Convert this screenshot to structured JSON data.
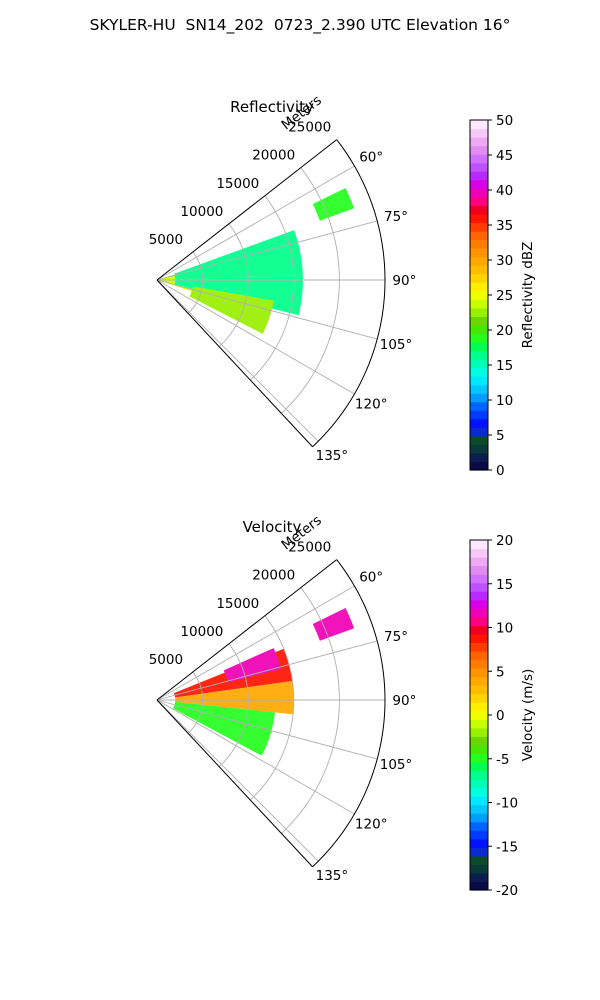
{
  "title": "SKYLER-HU  SN14_202  0723_2.390 UTC Elevation 16°",
  "chart_data": [
    {
      "type": "polar-sector",
      "title": "Reflectivity",
      "rlabel": "Meters",
      "r_ticks": [
        "5000",
        "10000",
        "15000",
        "20000",
        "25000"
      ],
      "r_range": [
        0,
        25000
      ],
      "theta_ticks": [
        "60°",
        "75°",
        "90°",
        "105°",
        "120°",
        "135°"
      ],
      "theta_range_deg": [
        52,
        137
      ],
      "grid": true,
      "colorbar": {
        "label": "Reflectivity dBZ",
        "min": 0,
        "max": 50,
        "ticks": [
          "0",
          "5",
          "10",
          "15",
          "20",
          "25",
          "30",
          "35",
          "40",
          "45",
          "50"
        ],
        "colors": [
          "#0a0a48",
          "#0b1c50",
          "#083a38",
          "#0c4a2e",
          "#0a2ad0",
          "#0012ff",
          "#003cff",
          "#0064ff",
          "#009cff",
          "#00c8ff",
          "#00e8ff",
          "#00ffe0",
          "#00ffb4",
          "#00ff8c",
          "#00ff50",
          "#24ff20",
          "#44e800",
          "#6ad800",
          "#98f000",
          "#c8ff00",
          "#f0ff00",
          "#ffee00",
          "#ffd400",
          "#ffbc00",
          "#ffa800",
          "#ff9400",
          "#ff7c00",
          "#ff6400",
          "#ff3c00",
          "#ff1400",
          "#f00020",
          "#ff0080",
          "#f000b4",
          "#d800e8",
          "#b828ff",
          "#c050ff",
          "#d070ff",
          "#e08cf0",
          "#eea8f4",
          "#f6c8f8",
          "#fde8fd"
        ]
      },
      "echo_regions": [
        {
          "r": [
            0,
            9000
          ],
          "theta": [
            72,
            108
          ],
          "value": 24
        },
        {
          "r": [
            2000,
            16000
          ],
          "theta": [
            70,
            88
          ],
          "value": 17
        },
        {
          "r": [
            2000,
            16000
          ],
          "theta": [
            88,
            104
          ],
          "value": 17
        },
        {
          "r": [
            4000,
            13000
          ],
          "theta": [
            100,
            117
          ],
          "value": 22
        },
        {
          "r": [
            19000,
            23000
          ],
          "theta": [
            64,
            70
          ],
          "value": 19
        }
      ]
    },
    {
      "type": "polar-sector",
      "title": "Velocity",
      "rlabel": "Meters",
      "r_ticks": [
        "5000",
        "10000",
        "15000",
        "20000",
        "25000"
      ],
      "r_range": [
        0,
        25000
      ],
      "theta_ticks": [
        "60°",
        "75°",
        "90°",
        "105°",
        "120°",
        "135°"
      ],
      "theta_range_deg": [
        52,
        137
      ],
      "grid": true,
      "colorbar": {
        "label": "Velocity (m/s)",
        "min": -20,
        "max": 20,
        "ticks": [
          "-20",
          "-15",
          "-10",
          "-5",
          "0",
          "5",
          "10",
          "15",
          "20"
        ],
        "colors": [
          "#0a0a48",
          "#0b1c50",
          "#083a38",
          "#0c4a2e",
          "#0a2ad0",
          "#0012ff",
          "#003cff",
          "#0064ff",
          "#009cff",
          "#00c8ff",
          "#00e8ff",
          "#00ffe0",
          "#00ffb4",
          "#00ff8c",
          "#00ff50",
          "#24ff20",
          "#44e800",
          "#6ad800",
          "#98f000",
          "#c8ff00",
          "#f0ff00",
          "#ffee00",
          "#ffd400",
          "#ffbc00",
          "#ffa800",
          "#ff9400",
          "#ff7c00",
          "#ff6400",
          "#ff3c00",
          "#ff1400",
          "#f00020",
          "#ff0080",
          "#f000b4",
          "#d800e8",
          "#b828ff",
          "#c050ff",
          "#d070ff",
          "#e08cf0",
          "#eea8f4",
          "#f6c8f8",
          "#fde8fd"
        ]
      },
      "echo_regions": [
        {
          "r": [
            2000,
            15000
          ],
          "theta": [
            68,
            82
          ],
          "value": 9
        },
        {
          "r": [
            8000,
            14000
          ],
          "theta": [
            66,
            76
          ],
          "value": 12
        },
        {
          "r": [
            2000,
            15000
          ],
          "theta": [
            82,
            96
          ],
          "value": 4
        },
        {
          "r": [
            2000,
            13000
          ],
          "theta": [
            96,
            118
          ],
          "value": -5
        },
        {
          "r": [
            19000,
            23000
          ],
          "theta": [
            64,
            70
          ],
          "value": 12
        }
      ]
    }
  ]
}
